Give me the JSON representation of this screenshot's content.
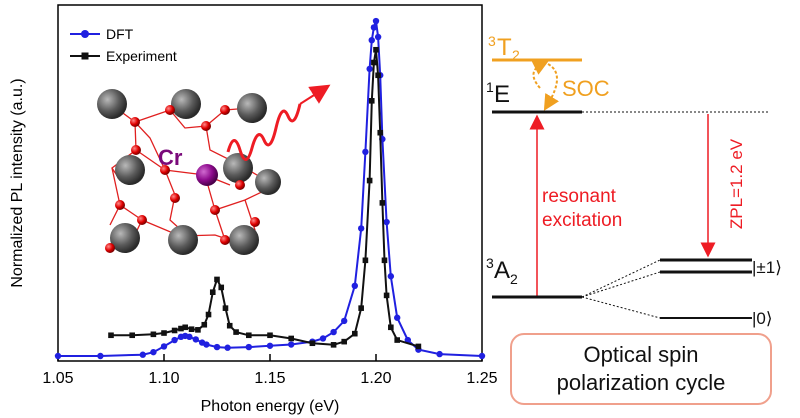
{
  "chart_data": {
    "type": "line",
    "xlabel": "Photon energy (eV)",
    "ylabel": "Normalized PL intensity (a.u.)",
    "xlim": [
      1.05,
      1.25
    ],
    "ylim": [
      0,
      1.0
    ],
    "x_ticks": [
      "1.05",
      "1.10",
      "1.15",
      "1.20",
      "1.25"
    ],
    "legend_position": "top-left",
    "grid": false,
    "series": [
      {
        "name": "DFT",
        "color": "#2020e0",
        "marker": "circle",
        "x": [
          1.05,
          1.07,
          1.09,
          1.095,
          1.1,
          1.105,
          1.108,
          1.11,
          1.112,
          1.115,
          1.118,
          1.12,
          1.125,
          1.13,
          1.14,
          1.15,
          1.16,
          1.17,
          1.175,
          1.18,
          1.185,
          1.19,
          1.193,
          1.195,
          1.197,
          1.198,
          1.199,
          1.2,
          1.201,
          1.202,
          1.203,
          1.205,
          1.207,
          1.21,
          1.215,
          1.22,
          1.23,
          1.25
        ],
        "y": [
          0.0,
          0.0,
          0.004,
          0.012,
          0.03,
          0.05,
          0.06,
          0.063,
          0.06,
          0.052,
          0.042,
          0.036,
          0.028,
          0.026,
          0.028,
          0.032,
          0.036,
          0.045,
          0.055,
          0.075,
          0.11,
          0.22,
          0.4,
          0.64,
          0.9,
          0.99,
          1.03,
          1.05,
          1.0,
          0.88,
          0.68,
          0.42,
          0.25,
          0.12,
          0.05,
          0.02,
          0.006,
          0.0
        ]
      },
      {
        "name": "Experiment",
        "color": "#111111",
        "marker": "square",
        "x": [
          1.075,
          1.085,
          1.095,
          1.1,
          1.105,
          1.108,
          1.11,
          1.113,
          1.116,
          1.119,
          1.121,
          1.123,
          1.125,
          1.127,
          1.129,
          1.131,
          1.134,
          1.14,
          1.15,
          1.16,
          1.17,
          1.18,
          1.185,
          1.19,
          1.193,
          1.195,
          1.197,
          1.198,
          1.199,
          1.2,
          1.201,
          1.202,
          1.203,
          1.204,
          1.205,
          1.207,
          1.21,
          1.22
        ],
        "y": [
          0.065,
          0.065,
          0.068,
          0.072,
          0.08,
          0.086,
          0.09,
          0.084,
          0.082,
          0.098,
          0.13,
          0.2,
          0.24,
          0.215,
          0.15,
          0.095,
          0.075,
          0.065,
          0.065,
          0.055,
          0.04,
          0.035,
          0.045,
          0.07,
          0.15,
          0.3,
          0.55,
          0.8,
          0.92,
          0.96,
          0.88,
          0.7,
          0.48,
          0.3,
          0.19,
          0.09,
          0.05,
          0.03
        ]
      }
    ]
  },
  "inset": {
    "atom_label": "Cr"
  },
  "levels": {
    "T2": {
      "main": "3",
      "letter": "T",
      "sub": "2"
    },
    "E": {
      "main": "1",
      "letter": "E"
    },
    "A2": {
      "main": "3",
      "letter": "A",
      "sub": "2"
    },
    "soc_label": "SOC",
    "excitation_line1": "resonant",
    "excitation_line2": "excitation",
    "zpl_label": "ZPL=1.2 eV",
    "state_pm1": "|±1⟩",
    "state_0": "|0⟩",
    "colors": {
      "orange": "#f0a020",
      "red": "#ee1c24"
    }
  },
  "caption": {
    "line1": "Optical spin",
    "line2": "polarization cycle"
  }
}
